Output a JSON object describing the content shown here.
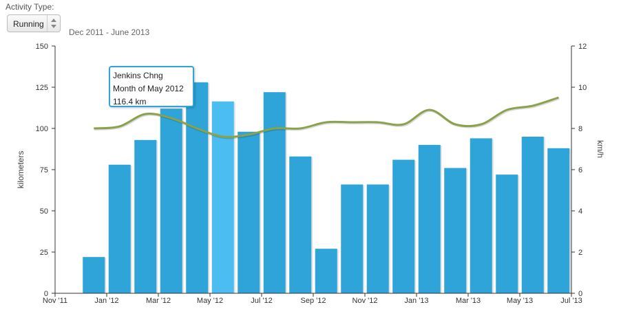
{
  "controls": {
    "activity_label": "Activity Type:",
    "activity_value": "Running",
    "date_range": "Dec 2011 - June 2013"
  },
  "tooltip": {
    "name": "Jenkins Chng",
    "period": "Month of May 2012",
    "value": "116.4 km"
  },
  "colors": {
    "bar": "#2ea4d8",
    "bar_highlight": "#4bbdf0",
    "line": "#8aa24c",
    "axis": "#333333"
  },
  "chart_data": {
    "type": "bar",
    "x_ticks": [
      "Nov '11",
      "Jan '12",
      "Mar '12",
      "May '12",
      "Jul '12",
      "Sep '12",
      "Nov '12",
      "Jan '13",
      "Mar '13",
      "May '13",
      "Jul '13"
    ],
    "categories": [
      "Dec 2011",
      "Jan 2012",
      "Feb 2012",
      "Mar 2012",
      "Apr 2012",
      "May 2012",
      "Jun 2012",
      "Jul 2012",
      "Aug 2012",
      "Sep 2012",
      "Oct 2012",
      "Nov 2012",
      "Dec 2012",
      "Jan 2013",
      "Feb 2013",
      "Mar 2013",
      "Apr 2013",
      "May 2013",
      "Jun 2013"
    ],
    "highlight_index": 5,
    "series": [
      {
        "name": "",
        "axis": "left",
        "type": "bar",
        "values": [
          22,
          78,
          93,
          112,
          128,
          116.4,
          98,
          122,
          83,
          27,
          66,
          66,
          81,
          90,
          76,
          94,
          72,
          95,
          88
        ]
      },
      {
        "name": "",
        "axis": "right",
        "type": "line",
        "values": [
          8.0,
          8.1,
          8.7,
          8.5,
          8.0,
          7.6,
          7.7,
          8.0,
          8.0,
          8.3,
          8.3,
          8.3,
          8.2,
          8.9,
          8.2,
          8.2,
          8.9,
          9.1,
          9.5
        ]
      }
    ],
    "ylabel": "kilometers",
    "y2label": "km/h",
    "ylim": [
      0,
      150
    ],
    "yticks": [
      0,
      25,
      50,
      75,
      100,
      125,
      150
    ],
    "y2lim": [
      0,
      12
    ],
    "y2ticks": [
      0,
      2,
      4,
      6,
      8,
      10,
      12
    ],
    "grid": false
  }
}
